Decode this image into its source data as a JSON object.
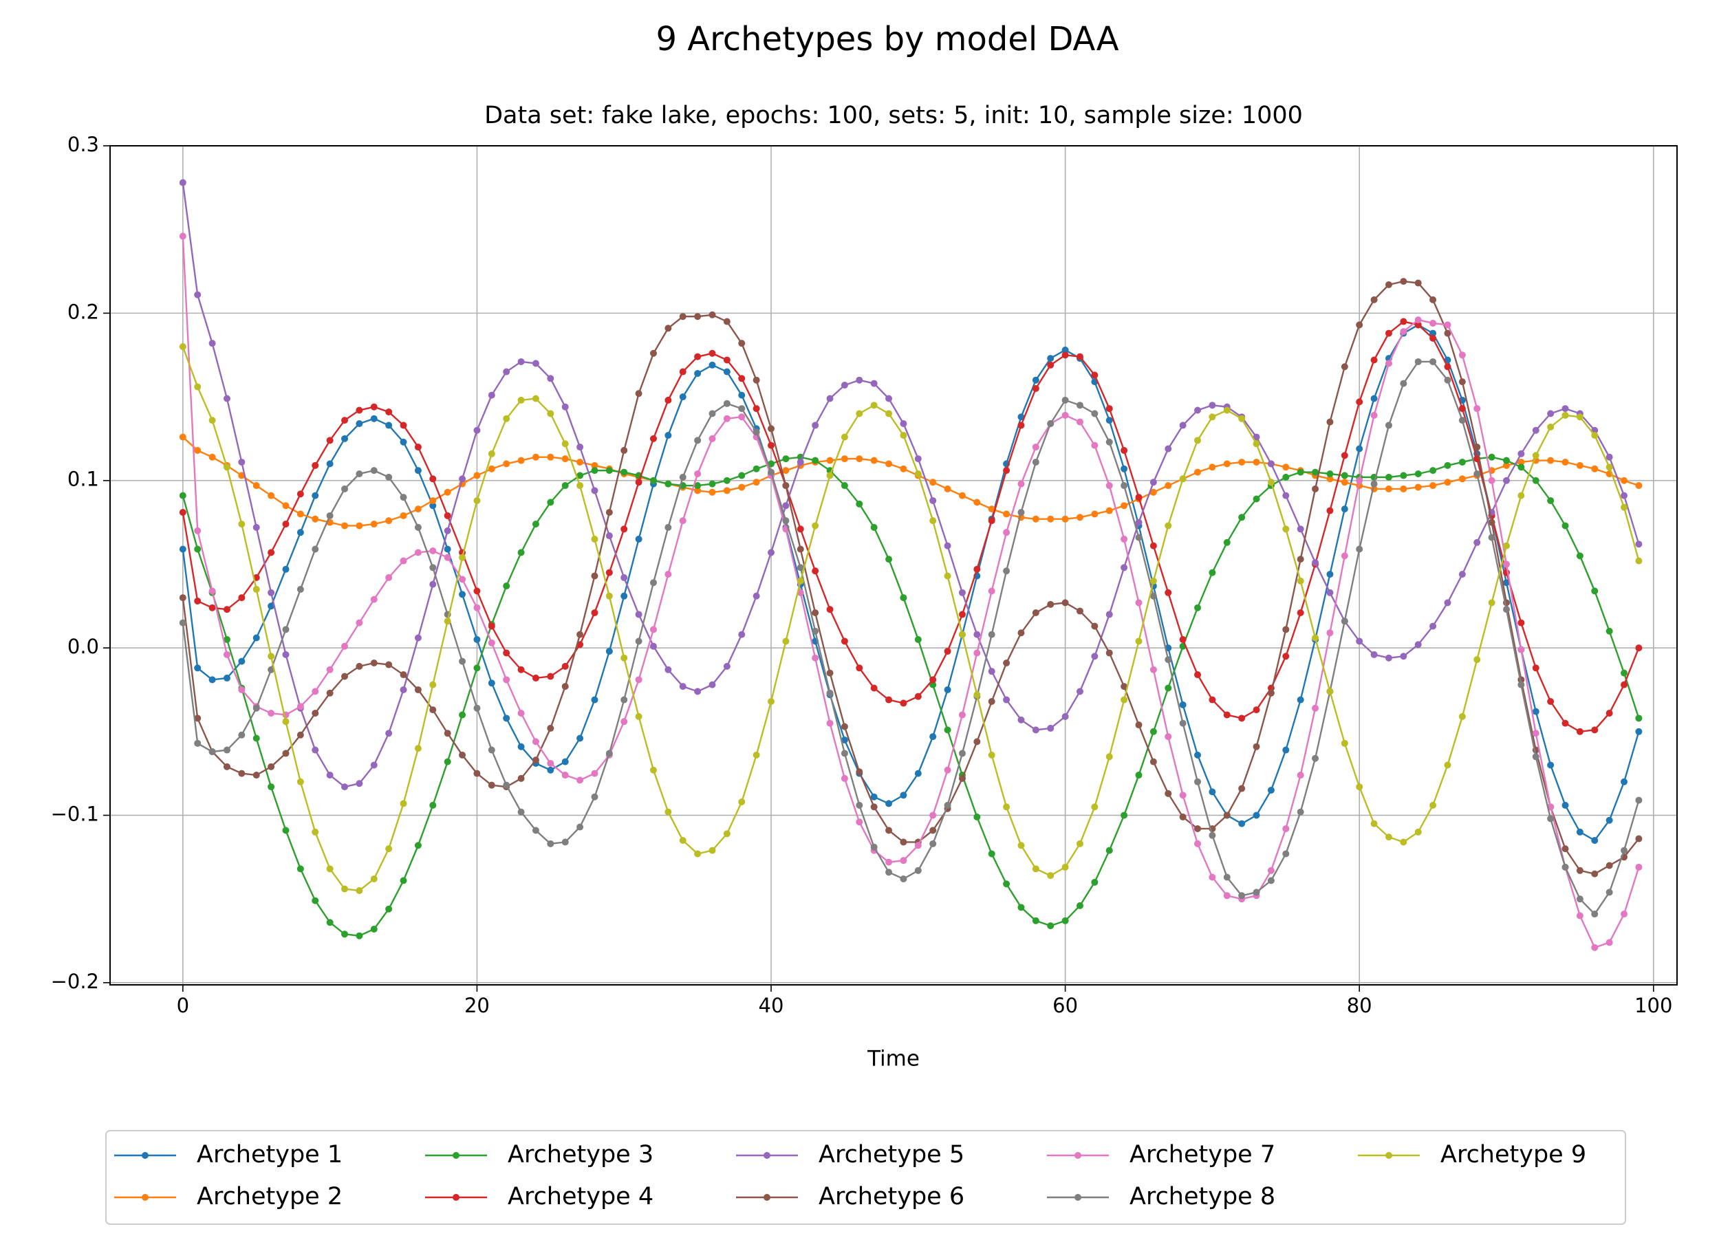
{
  "chart_data": {
    "type": "line",
    "title": "9 Archetypes by model DAA",
    "subtitle": "Data set: fake lake, epochs: 100, sets: 5, init: 10, sample size: 1000",
    "x_label": "Time",
    "xlim": [
      -4.95,
      101.6
    ],
    "ylim": [
      -0.2013,
      0.3
    ],
    "xticks": [
      0,
      20,
      40,
      60,
      80,
      100
    ],
    "yticks": [
      {
        "value": -0.2,
        "label": "−0.2"
      },
      {
        "value": -0.1,
        "label": "−0.1"
      },
      {
        "value": 0,
        "label": "0.0"
      },
      0.1,
      0.2,
      0.3
    ],
    "grid": true,
    "legend_loc": "bottom",
    "legend_columns": 5,
    "x": [
      0,
      1,
      2,
      3,
      4,
      5,
      6,
      7,
      8,
      9,
      10,
      11,
      12,
      13,
      14,
      15,
      16,
      17,
      18,
      19,
      20,
      21,
      22,
      23,
      24,
      25,
      26,
      27,
      28,
      29,
      30,
      31,
      32,
      33,
      34,
      35,
      36,
      37,
      38,
      39,
      40,
      41,
      42,
      43,
      44,
      45,
      46,
      47,
      48,
      49,
      50,
      51,
      52,
      53,
      54,
      55,
      56,
      57,
      58,
      59,
      60,
      61,
      62,
      63,
      64,
      65,
      66,
      67,
      68,
      69,
      70,
      71,
      72,
      73,
      74,
      75,
      76,
      77,
      78,
      79,
      80,
      81,
      82,
      83,
      84,
      85,
      86,
      87,
      88,
      89,
      90,
      91,
      92,
      93,
      94,
      95,
      96,
      97,
      98,
      99
    ],
    "series": [
      {
        "name": "Archetype 1",
        "color": "#1f77b4",
        "values": [
          0.059,
          -0.012,
          -0.019,
          -0.018,
          -0.008,
          0.006,
          0.025,
          0.047,
          0.069,
          0.091,
          0.11,
          0.125,
          0.134,
          0.137,
          0.133,
          0.123,
          0.106,
          0.085,
          0.059,
          0.032,
          0.005,
          -0.021,
          -0.042,
          -0.059,
          -0.069,
          -0.073,
          -0.068,
          -0.054,
          -0.031,
          -0.002,
          0.031,
          0.065,
          0.098,
          0.127,
          0.15,
          0.164,
          0.169,
          0.165,
          0.151,
          0.131,
          0.104,
          0.072,
          0.038,
          0.004,
          -0.028,
          -0.055,
          -0.075,
          -0.089,
          -0.093,
          -0.088,
          -0.075,
          -0.053,
          -0.025,
          0.008,
          0.043,
          0.077,
          0.11,
          0.138,
          0.16,
          0.173,
          0.178,
          0.173,
          0.159,
          0.136,
          0.107,
          0.073,
          0.037,
          0.0,
          -0.034,
          -0.064,
          -0.086,
          -0.1,
          -0.105,
          -0.1,
          -0.085,
          -0.061,
          -0.031,
          0.005,
          0.044,
          0.083,
          0.119,
          0.149,
          0.173,
          0.188,
          0.193,
          0.188,
          0.172,
          0.148,
          0.116,
          0.079,
          0.039,
          -0.001,
          -0.038,
          -0.07,
          -0.094,
          -0.11,
          -0.115,
          -0.103,
          -0.08,
          -0.05
        ]
      },
      {
        "name": "Archetype 2",
        "color": "#ff7f0e",
        "values": [
          0.126,
          0.118,
          0.114,
          0.109,
          0.103,
          0.097,
          0.091,
          0.085,
          0.08,
          0.077,
          0.075,
          0.073,
          0.073,
          0.074,
          0.076,
          0.079,
          0.083,
          0.088,
          0.093,
          0.098,
          0.103,
          0.107,
          0.11,
          0.112,
          0.114,
          0.114,
          0.113,
          0.111,
          0.109,
          0.107,
          0.104,
          0.102,
          0.1,
          0.098,
          0.096,
          0.094,
          0.093,
          0.094,
          0.096,
          0.099,
          0.103,
          0.106,
          0.109,
          0.111,
          0.112,
          0.113,
          0.113,
          0.112,
          0.11,
          0.107,
          0.103,
          0.099,
          0.095,
          0.091,
          0.087,
          0.083,
          0.08,
          0.078,
          0.077,
          0.077,
          0.077,
          0.078,
          0.08,
          0.082,
          0.085,
          0.089,
          0.093,
          0.097,
          0.101,
          0.105,
          0.108,
          0.11,
          0.111,
          0.111,
          0.11,
          0.108,
          0.106,
          0.103,
          0.101,
          0.099,
          0.097,
          0.095,
          0.095,
          0.095,
          0.096,
          0.097,
          0.099,
          0.101,
          0.103,
          0.106,
          0.109,
          0.111,
          0.112,
          0.112,
          0.111,
          0.109,
          0.107,
          0.104,
          0.1,
          0.097
        ]
      },
      {
        "name": "Archetype 3",
        "color": "#2ca02c",
        "values": [
          0.091,
          0.059,
          0.033,
          0.005,
          -0.024,
          -0.054,
          -0.083,
          -0.109,
          -0.132,
          -0.151,
          -0.164,
          -0.171,
          -0.172,
          -0.168,
          -0.156,
          -0.139,
          -0.118,
          -0.094,
          -0.068,
          -0.04,
          -0.012,
          0.014,
          0.037,
          0.057,
          0.074,
          0.087,
          0.097,
          0.103,
          0.106,
          0.106,
          0.105,
          0.103,
          0.1,
          0.098,
          0.097,
          0.097,
          0.098,
          0.1,
          0.103,
          0.107,
          0.11,
          0.113,
          0.114,
          0.112,
          0.106,
          0.097,
          0.086,
          0.072,
          0.053,
          0.03,
          0.005,
          -0.022,
          -0.049,
          -0.076,
          -0.101,
          -0.123,
          -0.141,
          -0.155,
          -0.163,
          -0.166,
          -0.163,
          -0.154,
          -0.14,
          -0.121,
          -0.1,
          -0.076,
          -0.05,
          -0.024,
          0.001,
          0.024,
          0.045,
          0.063,
          0.078,
          0.089,
          0.097,
          0.102,
          0.105,
          0.105,
          0.104,
          0.103,
          0.102,
          0.102,
          0.102,
          0.103,
          0.104,
          0.106,
          0.109,
          0.111,
          0.113,
          0.114,
          0.112,
          0.108,
          0.1,
          0.088,
          0.073,
          0.055,
          0.034,
          0.01,
          -0.015,
          -0.042
        ]
      },
      {
        "name": "Archetype 4",
        "color": "#d62728",
        "values": [
          0.081,
          0.028,
          0.024,
          0.023,
          0.03,
          0.042,
          0.057,
          0.074,
          0.092,
          0.109,
          0.124,
          0.136,
          0.142,
          0.144,
          0.141,
          0.133,
          0.12,
          0.101,
          0.079,
          0.057,
          0.034,
          0.013,
          -0.003,
          -0.013,
          -0.018,
          -0.017,
          -0.011,
          0.002,
          0.021,
          0.045,
          0.071,
          0.099,
          0.125,
          0.148,
          0.165,
          0.174,
          0.176,
          0.172,
          0.161,
          0.143,
          0.121,
          0.097,
          0.071,
          0.046,
          0.023,
          0.004,
          -0.012,
          -0.024,
          -0.031,
          -0.033,
          -0.029,
          -0.019,
          -0.002,
          0.02,
          0.047,
          0.076,
          0.106,
          0.133,
          0.155,
          0.169,
          0.175,
          0.174,
          0.163,
          0.143,
          0.118,
          0.09,
          0.061,
          0.033,
          0.005,
          -0.016,
          -0.031,
          -0.04,
          -0.042,
          -0.037,
          -0.024,
          -0.005,
          0.021,
          0.05,
          0.082,
          0.115,
          0.147,
          0.172,
          0.188,
          0.195,
          0.193,
          0.185,
          0.168,
          0.143,
          0.113,
          0.079,
          0.045,
          0.015,
          -0.012,
          -0.032,
          -0.045,
          -0.05,
          -0.049,
          -0.039,
          -0.022,
          0.0
        ]
      },
      {
        "name": "Archetype 5",
        "color": "#9467bd",
        "values": [
          0.278,
          0.211,
          0.182,
          0.149,
          0.111,
          0.072,
          0.033,
          -0.004,
          -0.036,
          -0.061,
          -0.076,
          -0.083,
          -0.081,
          -0.07,
          -0.051,
          -0.025,
          0.006,
          0.038,
          0.07,
          0.101,
          0.13,
          0.151,
          0.165,
          0.171,
          0.17,
          0.161,
          0.144,
          0.12,
          0.094,
          0.067,
          0.042,
          0.02,
          0.001,
          -0.013,
          -0.023,
          -0.026,
          -0.022,
          -0.011,
          0.008,
          0.031,
          0.057,
          0.085,
          0.111,
          0.133,
          0.149,
          0.157,
          0.16,
          0.158,
          0.149,
          0.134,
          0.113,
          0.088,
          0.061,
          0.033,
          0.008,
          -0.014,
          -0.031,
          -0.043,
          -0.049,
          -0.048,
          -0.041,
          -0.026,
          -0.005,
          0.02,
          0.048,
          0.075,
          0.099,
          0.119,
          0.133,
          0.142,
          0.145,
          0.144,
          0.138,
          0.126,
          0.11,
          0.091,
          0.071,
          0.051,
          0.033,
          0.016,
          0.004,
          -0.004,
          -0.006,
          -0.005,
          0.002,
          0.013,
          0.027,
          0.044,
          0.063,
          0.081,
          0.1,
          0.116,
          0.13,
          0.14,
          0.143,
          0.14,
          0.13,
          0.114,
          0.091,
          0.062
        ]
      },
      {
        "name": "Archetype 6",
        "color": "#8c564b",
        "values": [
          0.03,
          -0.042,
          -0.062,
          -0.071,
          -0.075,
          -0.076,
          -0.071,
          -0.063,
          -0.052,
          -0.039,
          -0.027,
          -0.017,
          -0.011,
          -0.009,
          -0.01,
          -0.016,
          -0.025,
          -0.037,
          -0.051,
          -0.064,
          -0.075,
          -0.082,
          -0.083,
          -0.078,
          -0.067,
          -0.048,
          -0.023,
          0.008,
          0.043,
          0.081,
          0.118,
          0.152,
          0.176,
          0.191,
          0.198,
          0.198,
          0.199,
          0.195,
          0.182,
          0.16,
          0.131,
          0.097,
          0.059,
          0.021,
          -0.015,
          -0.047,
          -0.074,
          -0.095,
          -0.109,
          -0.116,
          -0.116,
          -0.109,
          -0.096,
          -0.078,
          -0.056,
          -0.032,
          -0.009,
          0.009,
          0.021,
          0.026,
          0.027,
          0.022,
          0.013,
          -0.003,
          -0.023,
          -0.046,
          -0.068,
          -0.087,
          -0.101,
          -0.108,
          -0.108,
          -0.1,
          -0.084,
          -0.059,
          -0.027,
          0.011,
          0.053,
          0.095,
          0.135,
          0.168,
          0.193,
          0.208,
          0.217,
          0.219,
          0.218,
          0.208,
          0.188,
          0.159,
          0.12,
          0.075,
          0.027,
          -0.019,
          -0.061,
          -0.095,
          -0.12,
          -0.133,
          -0.135,
          -0.13,
          -0.125,
          -0.114
        ]
      },
      {
        "name": "Archetype 7",
        "color": "#e377c2",
        "values": [
          0.246,
          0.07,
          0.034,
          -0.004,
          -0.025,
          -0.035,
          -0.039,
          -0.04,
          -0.035,
          -0.026,
          -0.013,
          0.001,
          0.015,
          0.029,
          0.042,
          0.052,
          0.057,
          0.058,
          0.054,
          0.041,
          0.024,
          0.003,
          -0.019,
          -0.039,
          -0.056,
          -0.069,
          -0.076,
          -0.079,
          -0.075,
          -0.064,
          -0.044,
          -0.019,
          0.011,
          0.044,
          0.076,
          0.104,
          0.125,
          0.137,
          0.138,
          0.126,
          0.103,
          0.071,
          0.033,
          -0.006,
          -0.045,
          -0.078,
          -0.104,
          -0.121,
          -0.128,
          -0.127,
          -0.118,
          -0.1,
          -0.073,
          -0.04,
          -0.003,
          0.034,
          0.069,
          0.098,
          0.12,
          0.134,
          0.139,
          0.135,
          0.121,
          0.097,
          0.065,
          0.027,
          -0.013,
          -0.053,
          -0.088,
          -0.117,
          -0.137,
          -0.148,
          -0.15,
          -0.148,
          -0.133,
          -0.108,
          -0.076,
          -0.036,
          0.009,
          0.055,
          0.1,
          0.139,
          0.17,
          0.189,
          0.196,
          0.194,
          0.193,
          0.175,
          0.143,
          0.1,
          0.05,
          -0.001,
          -0.051,
          -0.095,
          -0.131,
          -0.16,
          -0.179,
          -0.176,
          -0.159,
          -0.131
        ]
      },
      {
        "name": "Archetype 8",
        "color": "#7f7f7f",
        "values": [
          0.015,
          -0.057,
          -0.062,
          -0.061,
          -0.052,
          -0.036,
          -0.013,
          0.011,
          0.035,
          0.059,
          0.079,
          0.095,
          0.104,
          0.106,
          0.102,
          0.09,
          0.072,
          0.048,
          0.02,
          -0.008,
          -0.036,
          -0.061,
          -0.082,
          -0.098,
          -0.109,
          -0.117,
          -0.116,
          -0.107,
          -0.089,
          -0.063,
          -0.031,
          0.004,
          0.039,
          0.072,
          0.102,
          0.124,
          0.14,
          0.146,
          0.143,
          0.129,
          0.105,
          0.076,
          0.048,
          0.01,
          -0.027,
          -0.063,
          -0.094,
          -0.119,
          -0.134,
          -0.138,
          -0.133,
          -0.117,
          -0.094,
          -0.063,
          -0.029,
          0.008,
          0.046,
          0.081,
          0.111,
          0.134,
          0.148,
          0.145,
          0.14,
          0.123,
          0.097,
          0.066,
          0.031,
          -0.007,
          -0.045,
          -0.08,
          -0.112,
          -0.137,
          -0.148,
          -0.146,
          -0.139,
          -0.123,
          -0.098,
          -0.066,
          -0.026,
          0.016,
          0.059,
          0.098,
          0.133,
          0.158,
          0.171,
          0.171,
          0.16,
          0.136,
          0.104,
          0.066,
          0.023,
          -0.022,
          -0.065,
          -0.102,
          -0.131,
          -0.15,
          -0.159,
          -0.146,
          -0.121,
          -0.091
        ]
      },
      {
        "name": "Archetype 9",
        "color": "#bcbd22",
        "values": [
          0.18,
          0.156,
          0.136,
          0.108,
          0.074,
          0.035,
          -0.005,
          -0.044,
          -0.08,
          -0.11,
          -0.132,
          -0.144,
          -0.145,
          -0.138,
          -0.12,
          -0.093,
          -0.06,
          -0.022,
          0.016,
          0.054,
          0.088,
          0.116,
          0.137,
          0.148,
          0.149,
          0.14,
          0.122,
          0.097,
          0.065,
          0.031,
          -0.006,
          -0.041,
          -0.073,
          -0.098,
          -0.115,
          -0.123,
          -0.121,
          -0.111,
          -0.092,
          -0.064,
          -0.032,
          0.004,
          0.04,
          0.073,
          0.103,
          0.126,
          0.14,
          0.145,
          0.14,
          0.127,
          0.104,
          0.076,
          0.043,
          0.008,
          -0.028,
          -0.064,
          -0.095,
          -0.118,
          -0.132,
          -0.136,
          -0.131,
          -0.117,
          -0.095,
          -0.065,
          -0.031,
          0.004,
          0.04,
          0.073,
          0.101,
          0.124,
          0.138,
          0.142,
          0.137,
          0.122,
          0.099,
          0.071,
          0.04,
          0.006,
          -0.026,
          -0.057,
          -0.083,
          -0.105,
          -0.113,
          -0.116,
          -0.11,
          -0.094,
          -0.07,
          -0.041,
          -0.007,
          0.027,
          0.061,
          0.091,
          0.115,
          0.132,
          0.139,
          0.138,
          0.127,
          0.108,
          0.084,
          0.052
        ]
      }
    ]
  }
}
